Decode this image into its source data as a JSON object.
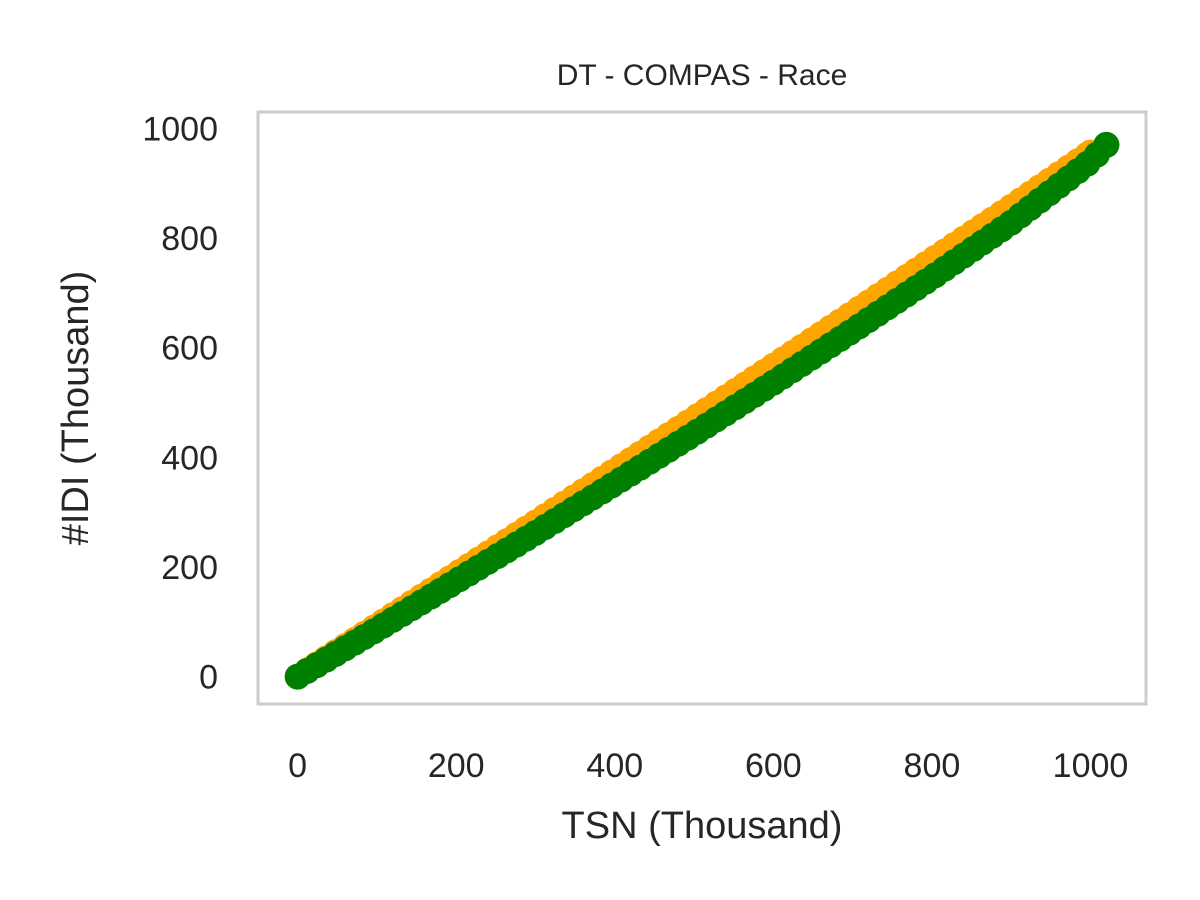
{
  "chart_data": {
    "type": "scatter",
    "title": "DT - COMPAS - Race",
    "xlabel": "TSN (Thousand)",
    "ylabel": "#IDI (Thousand)",
    "xlim": [
      -50,
      1070
    ],
    "ylim": [
      -50,
      1030
    ],
    "xticks": [
      0,
      200,
      400,
      600,
      800,
      1000
    ],
    "yticks": [
      0,
      200,
      400,
      600,
      800,
      1000
    ],
    "grid": false,
    "colors": {
      "frame": "#cccccc",
      "text": "#262626"
    },
    "series": [
      {
        "color": "#000080",
        "marker": "line",
        "points": [
          [
            0,
            0
          ],
          [
            200,
            180
          ],
          [
            400,
            370
          ],
          [
            600,
            560
          ],
          [
            800,
            750
          ],
          [
            1000,
            950
          ]
        ]
      },
      {
        "color": "#ffa500",
        "marker": "circle",
        "points": [
          [
            0,
            0
          ],
          [
            100,
            93
          ],
          [
            200,
            187
          ],
          [
            300,
            281
          ],
          [
            400,
            376
          ],
          [
            500,
            471
          ],
          [
            600,
            567
          ],
          [
            700,
            663
          ],
          [
            800,
            760
          ],
          [
            900,
            857
          ],
          [
            1000,
            956
          ]
        ]
      },
      {
        "color": "#008000",
        "marker": "circle",
        "points": [
          [
            0,
            0
          ],
          [
            100,
            86
          ],
          [
            200,
            174
          ],
          [
            300,
            262
          ],
          [
            400,
            352
          ],
          [
            500,
            443
          ],
          [
            600,
            536
          ],
          [
            700,
            631
          ],
          [
            800,
            728
          ],
          [
            900,
            828
          ],
          [
            1000,
            940
          ],
          [
            1020,
            970
          ]
        ]
      }
    ]
  }
}
